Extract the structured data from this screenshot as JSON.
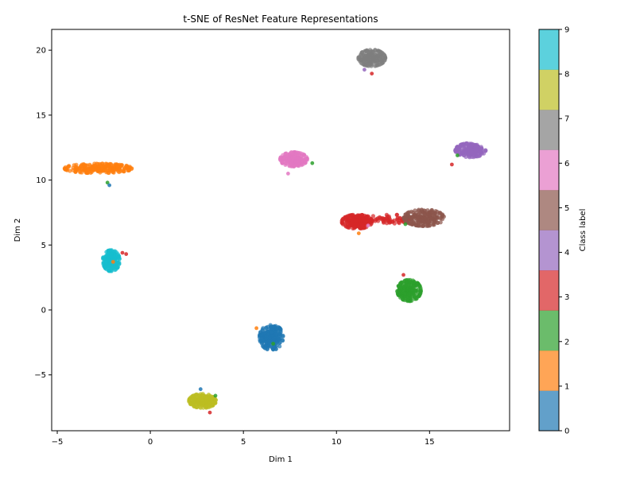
{
  "chart_data": {
    "type": "scatter",
    "title": "t-SNE of ResNet Feature Representations",
    "xlabel": "Dim 1",
    "ylabel": "Dim 2",
    "xlim": [
      -5.3,
      19.3
    ],
    "ylim": [
      -9.3,
      21.6
    ],
    "xticks": [
      -5,
      0,
      5,
      10,
      15
    ],
    "yticks": [
      -5,
      0,
      5,
      10,
      15,
      20
    ],
    "grid": false,
    "legend": "none",
    "colorbar": {
      "label": "Class label",
      "ticks": [
        0,
        1,
        2,
        3,
        4,
        5,
        6,
        7,
        8,
        9
      ],
      "colors": [
        "#1f77b4",
        "#ff7f0e",
        "#2ca02c",
        "#d62728",
        "#9467bd",
        "#8c564b",
        "#e377c2",
        "#7f7f7f",
        "#bcbd22",
        "#17becf"
      ],
      "alpha": 0.7
    },
    "clusters": [
      {
        "class": 0,
        "cx": 6.5,
        "cy": -2.1,
        "sx": 0.35,
        "sy": 0.55,
        "n": 220
      },
      {
        "class": 1,
        "cx": -2.8,
        "cy": 10.9,
        "sx": 1.0,
        "sy": 0.2,
        "n": 220
      },
      {
        "class": 2,
        "cx": 13.9,
        "cy": 1.5,
        "sx": 0.35,
        "sy": 0.45,
        "n": 200
      },
      {
        "class": 3,
        "cx": 11.1,
        "cy": 6.8,
        "sx": 0.45,
        "sy": 0.3,
        "n": 200
      },
      {
        "class": 3,
        "cx": 12.7,
        "cy": 7.0,
        "sx": 0.7,
        "sy": 0.2,
        "n": 60
      },
      {
        "class": 4,
        "cx": 17.2,
        "cy": 12.3,
        "sx": 0.45,
        "sy": 0.3,
        "n": 200
      },
      {
        "class": 5,
        "cx": 14.7,
        "cy": 7.1,
        "sx": 0.6,
        "sy": 0.35,
        "n": 220
      },
      {
        "class": 6,
        "cx": 7.7,
        "cy": 11.6,
        "sx": 0.4,
        "sy": 0.3,
        "n": 200
      },
      {
        "class": 7,
        "cx": 11.9,
        "cy": 19.4,
        "sx": 0.4,
        "sy": 0.35,
        "n": 200
      },
      {
        "class": 8,
        "cx": 2.8,
        "cy": -7.0,
        "sx": 0.4,
        "sy": 0.3,
        "n": 200
      },
      {
        "class": 9,
        "cx": -2.1,
        "cy": 3.8,
        "sx": 0.25,
        "sy": 0.45,
        "n": 200
      }
    ],
    "outliers": [
      {
        "class": 2,
        "x": -2.3,
        "y": 9.8
      },
      {
        "class": 0,
        "x": -2.2,
        "y": 9.6
      },
      {
        "class": 3,
        "x": -1.3,
        "y": 4.3
      },
      {
        "class": 3,
        "x": -1.5,
        "y": 4.4
      },
      {
        "class": 1,
        "x": -2.0,
        "y": 3.7
      },
      {
        "class": 2,
        "x": 6.6,
        "y": -2.6
      },
      {
        "class": 1,
        "x": 5.7,
        "y": -1.4
      },
      {
        "class": 3,
        "x": 3.2,
        "y": -7.9
      },
      {
        "class": 0,
        "x": 2.7,
        "y": -6.1
      },
      {
        "class": 2,
        "x": 3.5,
        "y": -6.6
      },
      {
        "class": 3,
        "x": 11.9,
        "y": 18.2
      },
      {
        "class": 4,
        "x": 11.5,
        "y": 18.5
      },
      {
        "class": 3,
        "x": 16.2,
        "y": 11.2
      },
      {
        "class": 2,
        "x": 16.5,
        "y": 11.9
      },
      {
        "class": 2,
        "x": 8.7,
        "y": 11.3
      },
      {
        "class": 6,
        "x": 7.4,
        "y": 10.5
      },
      {
        "class": 2,
        "x": 13.7,
        "y": 6.6
      },
      {
        "class": 3,
        "x": 13.6,
        "y": 2.7
      },
      {
        "class": 6,
        "x": 11.7,
        "y": 6.5
      },
      {
        "class": 1,
        "x": 11.2,
        "y": 5.9
      }
    ]
  }
}
